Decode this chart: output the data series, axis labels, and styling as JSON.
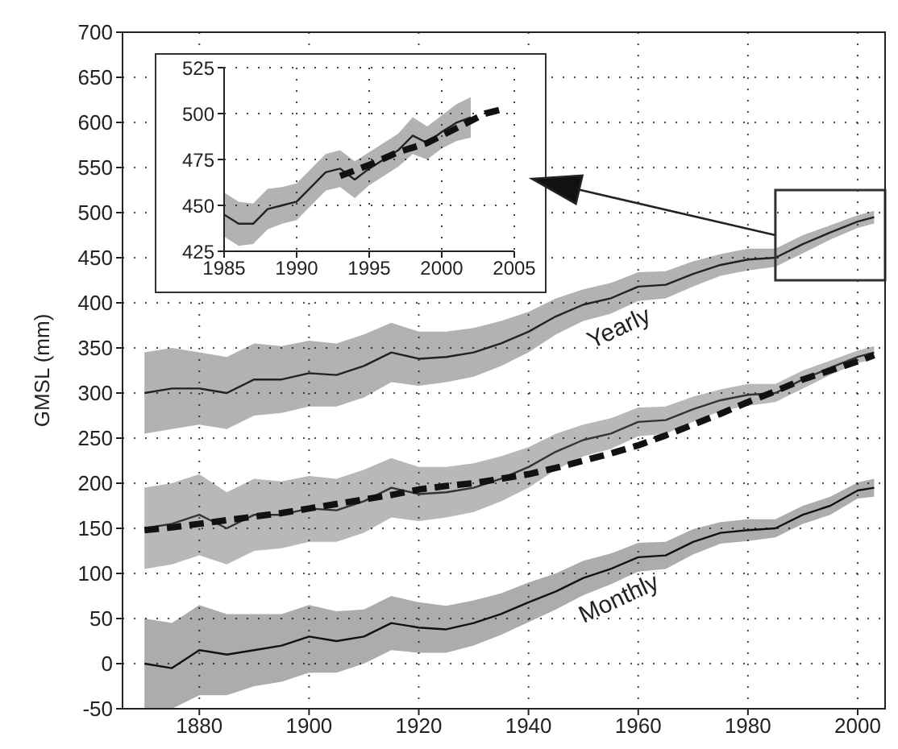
{
  "chart_data": [
    {
      "type": "line",
      "ylabel": "GMSL (mm)",
      "xlim": [
        1866,
        2005
      ],
      "xticks": [
        1880,
        1900,
        1920,
        1940,
        1960,
        1980,
        2000
      ],
      "ylim": [
        -50,
        700
      ],
      "yticks": [
        -50,
        0,
        50,
        100,
        150,
        200,
        250,
        300,
        350,
        400,
        450,
        500,
        550,
        600,
        650,
        700
      ],
      "grid": true,
      "x": [
        1870,
        1875,
        1880,
        1885,
        1890,
        1895,
        1900,
        1905,
        1910,
        1915,
        1920,
        1925,
        1930,
        1935,
        1940,
        1945,
        1950,
        1955,
        1960,
        1965,
        1970,
        1975,
        1980,
        1985,
        1990,
        1995,
        2000,
        2003
      ],
      "series": [
        {
          "name": "Yearly",
          "color": "#222222",
          "values": [
            300,
            305,
            305,
            300,
            315,
            315,
            322,
            320,
            330,
            345,
            338,
            340,
            345,
            355,
            368,
            385,
            398,
            405,
            418,
            420,
            432,
            442,
            448,
            450,
            465,
            478,
            490,
            495
          ],
          "lower": [
            255,
            260,
            265,
            260,
            275,
            278,
            285,
            285,
            295,
            312,
            308,
            312,
            318,
            330,
            345,
            365,
            380,
            388,
            402,
            405,
            418,
            430,
            436,
            440,
            455,
            470,
            483,
            488
          ],
          "upper": [
            345,
            350,
            345,
            340,
            355,
            352,
            358,
            355,
            365,
            378,
            368,
            368,
            372,
            380,
            390,
            405,
            415,
            422,
            434,
            435,
            446,
            454,
            460,
            460,
            475,
            486,
            497,
            502
          ]
        },
        {
          "color": "#333333",
          "values": [
            150,
            155,
            165,
            150,
            165,
            165,
            172,
            170,
            180,
            195,
            188,
            190,
            195,
            205,
            218,
            235,
            248,
            255,
            268,
            270,
            282,
            292,
            298,
            300,
            315,
            328,
            340,
            345
          ],
          "lower": [
            105,
            110,
            120,
            110,
            125,
            128,
            135,
            135,
            145,
            162,
            158,
            162,
            168,
            180,
            195,
            215,
            230,
            238,
            252,
            255,
            268,
            280,
            286,
            290,
            305,
            320,
            333,
            338
          ],
          "upper": [
            195,
            200,
            210,
            190,
            205,
            202,
            208,
            205,
            215,
            228,
            218,
            218,
            222,
            230,
            240,
            255,
            265,
            272,
            284,
            285,
            296,
            304,
            310,
            310,
            325,
            336,
            347,
            352
          ]
        },
        {
          "color": "#111111",
          "line_style": "dashed",
          "values": [
            148,
            151,
            155,
            159,
            163,
            167,
            172,
            177,
            182,
            187,
            193,
            197,
            200,
            205,
            210,
            217,
            225,
            233,
            242,
            253,
            265,
            277,
            290,
            302,
            315,
            325,
            335,
            342
          ]
        },
        {
          "name": "Monthly",
          "color": "#111111",
          "values": [
            0,
            -5,
            15,
            10,
            15,
            20,
            30,
            25,
            30,
            45,
            40,
            38,
            45,
            55,
            68,
            80,
            95,
            105,
            118,
            120,
            135,
            145,
            148,
            150,
            165,
            175,
            192,
            195
          ],
          "lower": [
            -50,
            -50,
            -35,
            -35,
            -25,
            -20,
            -10,
            -10,
            0,
            15,
            12,
            12,
            20,
            32,
            46,
            60,
            76,
            88,
            102,
            105,
            121,
            133,
            136,
            140,
            155,
            165,
            183,
            185
          ],
          "upper": [
            50,
            45,
            65,
            55,
            55,
            55,
            65,
            58,
            60,
            75,
            68,
            64,
            70,
            78,
            90,
            100,
            114,
            122,
            134,
            135,
            149,
            157,
            160,
            160,
            175,
            185,
            201,
            205
          ]
        }
      ]
    },
    {
      "type": "line",
      "xlim": [
        1985,
        2005
      ],
      "xticks": [
        1985,
        1990,
        1995,
        2000,
        2005
      ],
      "ylim": [
        425,
        525
      ],
      "yticks": [
        425,
        450,
        475,
        500,
        525
      ],
      "grid": true,
      "series": [
        {
          "color": "#222222",
          "x": [
            1985,
            1986,
            1987,
            1988,
            1989,
            1990,
            1991,
            1992,
            1993,
            1994,
            1995,
            1996,
            1997,
            1998,
            1999,
            2000,
            2001,
            2002
          ],
          "values": [
            445,
            440,
            440,
            448,
            450,
            452,
            460,
            468,
            470,
            464,
            470,
            475,
            480,
            488,
            484,
            490,
            495,
            498
          ],
          "lower": [
            433,
            428,
            429,
            437,
            440,
            442,
            450,
            458,
            460,
            454,
            461,
            466,
            471,
            478,
            475,
            481,
            485,
            487
          ],
          "upper": [
            457,
            452,
            451,
            459,
            460,
            462,
            470,
            478,
            480,
            474,
            479,
            484,
            489,
            498,
            493,
            499,
            505,
            509
          ]
        },
        {
          "color": "#111111",
          "line_style": "dashed",
          "x": [
            1993,
            1995,
            1997,
            1999,
            2001,
            2003,
            2004
          ],
          "values": [
            466,
            472,
            479,
            484,
            492,
            500,
            502
          ]
        }
      ]
    }
  ]
}
